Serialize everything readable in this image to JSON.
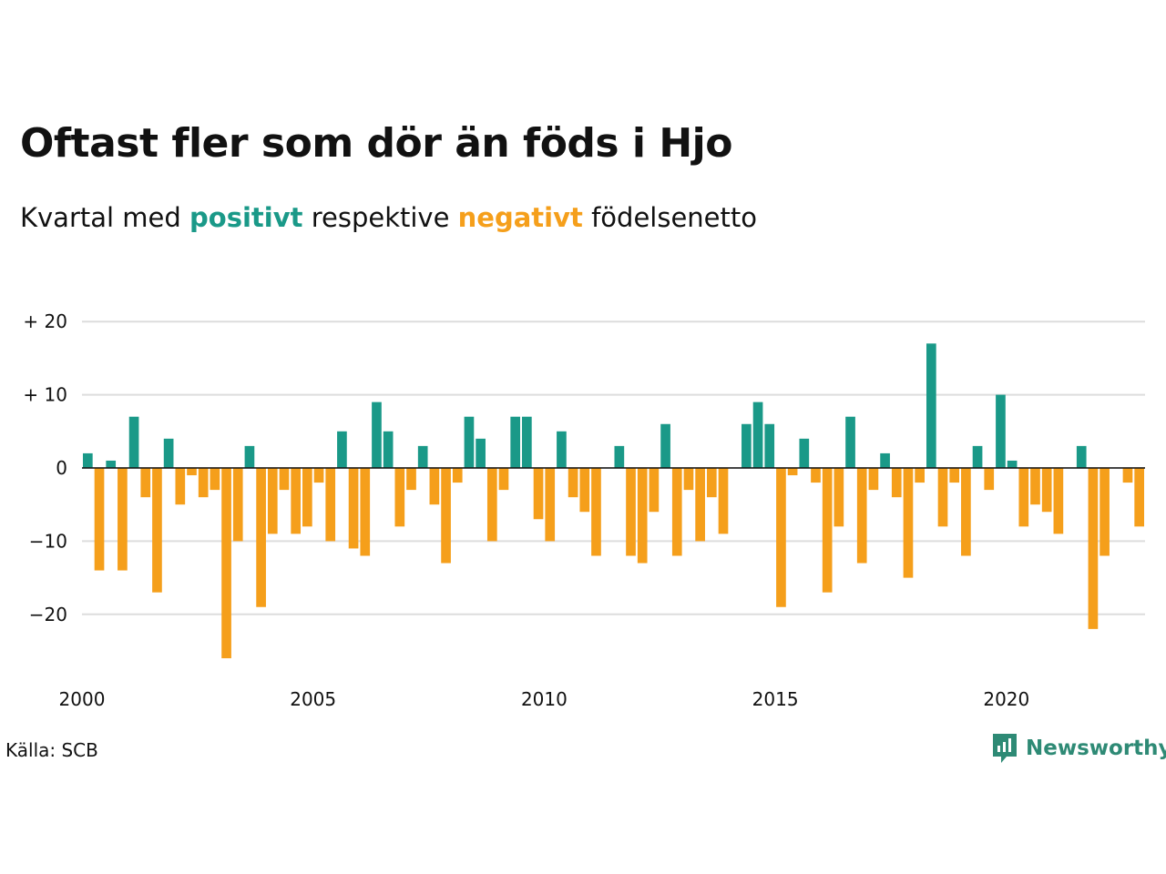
{
  "title": "Oftast fler som dör än föds i Hjo",
  "subtitle": {
    "prefix": "Kvartal med",
    "positive_word": "positivt",
    "middle": "respektive",
    "negative_word": "negativt",
    "suffix": "födelsenetto"
  },
  "source": "Källa: SCB",
  "logo_text": "Newsworthy",
  "colors": {
    "positive": "#1a9988",
    "negative": "#f59f1b",
    "grid": "#dddddd",
    "brand": "#2e8a75"
  },
  "chart_data": {
    "type": "bar",
    "title": "Oftast fler som dör än föds i Hjo",
    "subtitle": "Kvartal med positivt respektive negativt födelsenetto",
    "xlabel": "",
    "ylabel": "",
    "ylim": [
      -28,
      21
    ],
    "y_ticks": [
      {
        "value": 20,
        "label": "+ 20"
      },
      {
        "value": 10,
        "label": "+ 10"
      },
      {
        "value": 0,
        "label": "0"
      },
      {
        "value": -10,
        "label": "−10"
      },
      {
        "value": -20,
        "label": "−20"
      }
    ],
    "x_ticks": [
      {
        "value": 2000,
        "label": "2000"
      },
      {
        "value": 2005,
        "label": "2005"
      },
      {
        "value": 2010,
        "label": "2010"
      },
      {
        "value": 2015,
        "label": "2015"
      },
      {
        "value": 2020,
        "label": "2020"
      }
    ],
    "x_start": 2000,
    "x_end": 2023,
    "grid": true,
    "categories": [
      "2000Q1",
      "2000Q2",
      "2000Q3",
      "2000Q4",
      "2001Q1",
      "2001Q2",
      "2001Q3",
      "2001Q4",
      "2002Q1",
      "2002Q2",
      "2002Q3",
      "2002Q4",
      "2003Q1",
      "2003Q2",
      "2003Q3",
      "2003Q4",
      "2004Q1",
      "2004Q2",
      "2004Q3",
      "2004Q4",
      "2005Q1",
      "2005Q2",
      "2005Q3",
      "2005Q4",
      "2006Q1",
      "2006Q2",
      "2006Q3",
      "2006Q4",
      "2007Q1",
      "2007Q2",
      "2007Q3",
      "2007Q4",
      "2008Q1",
      "2008Q2",
      "2008Q3",
      "2008Q4",
      "2009Q1",
      "2009Q2",
      "2009Q3",
      "2009Q4",
      "2010Q1",
      "2010Q2",
      "2010Q3",
      "2010Q4",
      "2011Q1",
      "2011Q2",
      "2011Q3",
      "2011Q4",
      "2012Q1",
      "2012Q2",
      "2012Q3",
      "2012Q4",
      "2013Q1",
      "2013Q2",
      "2013Q3",
      "2013Q4",
      "2014Q1",
      "2014Q2",
      "2014Q3",
      "2014Q4",
      "2015Q1",
      "2015Q2",
      "2015Q3",
      "2015Q4",
      "2016Q1",
      "2016Q2",
      "2016Q3",
      "2016Q4",
      "2017Q1",
      "2017Q2",
      "2017Q3",
      "2017Q4",
      "2018Q1",
      "2018Q2",
      "2018Q3",
      "2018Q4",
      "2019Q1",
      "2019Q2",
      "2019Q3",
      "2019Q4",
      "2020Q1",
      "2020Q2",
      "2020Q3",
      "2020Q4",
      "2021Q1",
      "2021Q2",
      "2021Q3",
      "2021Q4",
      "2022Q1",
      "2022Q2",
      "2022Q3",
      "2022Q4"
    ],
    "values": [
      2,
      -14,
      1,
      -14,
      7,
      -4,
      -17,
      4,
      -5,
      -1,
      -4,
      -3,
      -26,
      -10,
      3,
      -19,
      -9,
      -3,
      -9,
      -8,
      -2,
      -10,
      5,
      -11,
      -12,
      9,
      5,
      -8,
      -3,
      3,
      -5,
      -13,
      -2,
      7,
      4,
      -10,
      -3,
      7,
      7,
      -7,
      -10,
      5,
      -4,
      -6,
      -12,
      0,
      3,
      -12,
      -13,
      -6,
      6,
      -12,
      -3,
      -10,
      -4,
      -9,
      0,
      6,
      9,
      6,
      -19,
      -1,
      4,
      -2,
      -17,
      -8,
      7,
      -13,
      -3,
      2,
      -4,
      -15,
      -2,
      17,
      -8,
      -2,
      -12,
      3,
      -3,
      10,
      1,
      -8,
      -5,
      -6,
      -9,
      0,
      3,
      -22,
      -12,
      0,
      -2,
      -8
    ]
  }
}
